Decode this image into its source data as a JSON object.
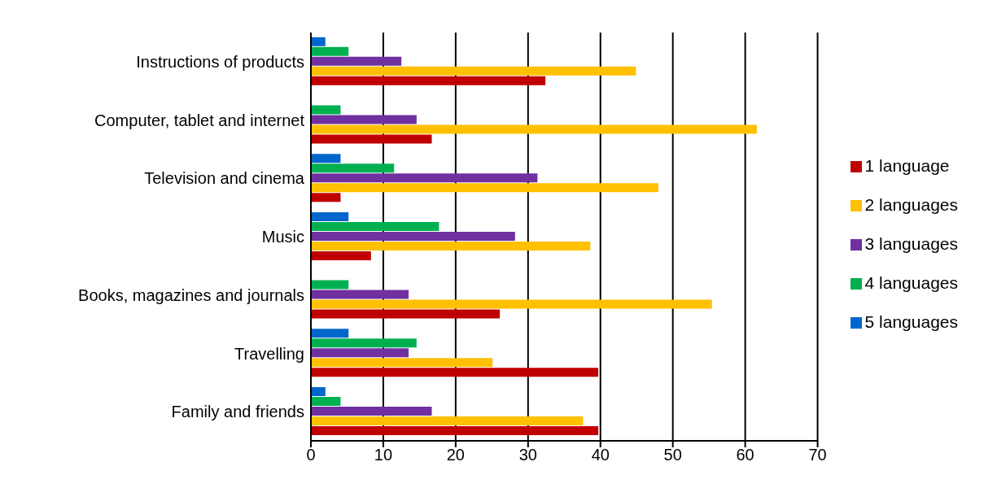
{
  "chart_data": {
    "type": "bar",
    "orientation": "horizontal",
    "categories": [
      "Instructions of products",
      "Computer, tablet and internet",
      "Television and cinema",
      "Music",
      "Books, magazines and journals",
      "Travelling",
      "Family and friends"
    ],
    "series": [
      {
        "name": "5 languages",
        "color": "#0066cc",
        "values": [
          2.0,
          0,
          4.1,
          5.2,
          0,
          5.2,
          2.0
        ]
      },
      {
        "name": "4 languages",
        "color": "#00b050",
        "values": [
          5.2,
          4.1,
          11.5,
          17.7,
          5.2,
          14.6,
          4.1
        ]
      },
      {
        "name": "3 languages",
        "color": "#7030a0",
        "values": [
          12.5,
          14.6,
          31.3,
          28.2,
          13.5,
          13.5,
          16.7
        ]
      },
      {
        "name": "2 languages",
        "color": "#ffc000",
        "values": [
          44.9,
          61.6,
          48.0,
          38.6,
          55.4,
          25.1,
          37.6
        ]
      },
      {
        "name": "1 language",
        "color": "#c00000",
        "values": [
          32.4,
          16.7,
          4.1,
          8.3,
          26.1,
          39.7,
          39.7
        ]
      }
    ],
    "xlim": [
      0,
      70
    ],
    "xticks": [
      0,
      10,
      20,
      30,
      40,
      50,
      60,
      70
    ],
    "grid": "x",
    "legend": "right"
  }
}
